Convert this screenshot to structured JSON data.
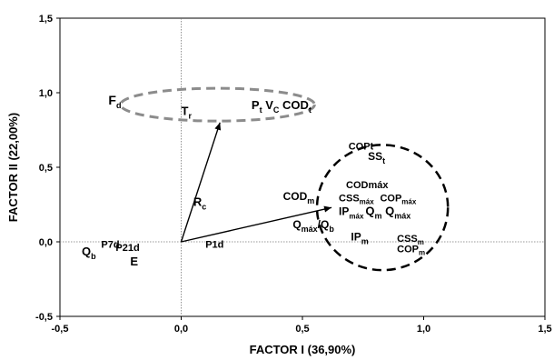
{
  "chart_data": {
    "type": "scatter",
    "xlabel": "FACTOR I (36,90%)",
    "ylabel": "FACTOR II (22,00%)",
    "xlim": [
      -0.5,
      1.5
    ],
    "ylim": [
      -0.5,
      1.5
    ],
    "x_ticks": [
      -0.5,
      0.0,
      0.5,
      1.0,
      1.5
    ],
    "y_ticks": [
      -0.5,
      0.0,
      0.5,
      1.0,
      1.5
    ],
    "x_tick_labels": [
      "-0,5",
      "0,0",
      "0,5",
      "1,0",
      "1,5"
    ],
    "y_tick_labels": [
      "-0,5",
      "0,0",
      "0,5",
      "1,0",
      "1,5"
    ],
    "grid": false,
    "reference_lines": "dashed lines at x = 0 and y = 0",
    "points": [
      {
        "parts": [
          [
            "F",
            14
          ],
          [
            "d",
            9,
            4
          ]
        ],
        "x": -0.3,
        "y": 0.92
      },
      {
        "parts": [
          [
            "T",
            13
          ],
          [
            "r",
            9,
            4
          ]
        ],
        "x": 0.0,
        "y": 0.85
      },
      {
        "parts": [
          [
            "P",
            13
          ],
          [
            "t",
            9,
            4
          ],
          [
            " V",
            13
          ],
          [
            "C",
            9,
            4
          ],
          [
            " COD",
            13
          ],
          [
            "t",
            9,
            4
          ]
        ],
        "x": 0.29,
        "y": 0.89
      },
      {
        "parts": [
          [
            "COPt",
            11
          ]
        ],
        "x": 0.69,
        "y": 0.62
      },
      {
        "parts": [
          [
            "SS",
            12
          ],
          [
            "t",
            9,
            4
          ]
        ],
        "x": 0.77,
        "y": 0.55
      },
      {
        "parts": [
          [
            "CODmáx",
            11
          ]
        ],
        "x": 0.68,
        "y": 0.36
      },
      {
        "parts": [
          [
            "COD",
            12
          ],
          [
            "m",
            9,
            4
          ]
        ],
        "x": 0.42,
        "y": 0.28
      },
      {
        "parts": [
          [
            "CSS",
            11
          ],
          [
            "máx",
            8,
            3
          ]
        ],
        "x": 0.65,
        "y": 0.27
      },
      {
        "parts": [
          [
            "COP",
            11
          ],
          [
            "máx",
            8,
            3
          ]
        ],
        "x": 0.82,
        "y": 0.27
      },
      {
        "parts": [
          [
            "IP",
            12
          ],
          [
            "máx",
            8,
            4
          ]
        ],
        "x": 0.65,
        "y": 0.18
      },
      {
        "parts": [
          [
            "Q",
            13
          ],
          [
            "m",
            9,
            4
          ],
          [
            " Q",
            13
          ],
          [
            "máx",
            9,
            4
          ]
        ],
        "x": 0.76,
        "y": 0.18
      },
      {
        "parts": [
          [
            "Q",
            12
          ],
          [
            "máx",
            9,
            4
          ],
          [
            "/Q",
            12
          ],
          [
            "b",
            9,
            4
          ]
        ],
        "x": 0.46,
        "y": 0.09
      },
      {
        "parts": [
          [
            "IP",
            12
          ],
          [
            "m",
            9,
            4
          ]
        ],
        "x": 0.7,
        "y": 0.01
      },
      {
        "parts": [
          [
            "CSS",
            11
          ],
          [
            "m",
            8,
            3
          ]
        ],
        "x": 0.89,
        "y": 0.0
      },
      {
        "parts": [
          [
            "COP",
            11
          ],
          [
            "m",
            8,
            3
          ]
        ],
        "x": 0.89,
        "y": -0.07
      },
      {
        "parts": [
          [
            "R",
            13
          ],
          [
            "c",
            9,
            4
          ]
        ],
        "x": 0.05,
        "y": 0.24
      },
      {
        "parts": [
          [
            "P1d",
            11
          ]
        ],
        "x": 0.1,
        "y": -0.04
      },
      {
        "parts": [
          [
            "P7d",
            11
          ]
        ],
        "x": -0.33,
        "y": -0.04
      },
      {
        "parts": [
          [
            "P21d",
            11
          ]
        ],
        "x": -0.27,
        "y": -0.06
      },
      {
        "parts": [
          [
            "Q",
            13
          ],
          [
            "b",
            9,
            4
          ]
        ],
        "x": -0.41,
        "y": -0.09
      },
      {
        "parts": [
          [
            "E",
            13
          ]
        ],
        "x": -0.21,
        "y": -0.16
      }
    ],
    "arrows": [
      {
        "from": [
          0,
          0
        ],
        "to": [
          0.16,
          0.8
        ]
      },
      {
        "from": [
          0,
          0
        ],
        "to": [
          0.62,
          0.23
        ]
      }
    ],
    "groups": [
      {
        "shape": "ellipse",
        "style": "dashed",
        "color": "#8c8c8c",
        "center": [
          0.15,
          0.92
        ],
        "radii": [
          0.4,
          0.11
        ]
      },
      {
        "shape": "ellipse",
        "style": "dashed",
        "color": "#000000",
        "center": [
          0.83,
          0.23
        ],
        "radii": [
          0.27,
          0.42
        ]
      }
    ]
  }
}
